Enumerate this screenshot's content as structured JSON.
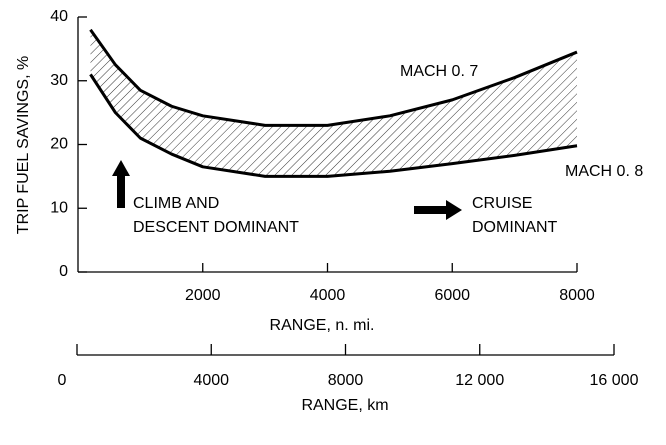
{
  "chart_data": {
    "type": "line",
    "ylabel": "TRIP FUEL SAVINGS, %",
    "xlabel": "RANGE, n. mi.",
    "x": [
      200,
      600,
      1000,
      1500,
      2000,
      3000,
      4000,
      5000,
      6000,
      7000,
      8000
    ],
    "series": [
      {
        "name": "MACH 0. 7",
        "color": "#000000",
        "values": [
          38,
          32.5,
          28.5,
          26,
          24.5,
          23,
          23,
          24.5,
          27,
          30.5,
          34.5
        ]
      },
      {
        "name": "MACH 0. 8",
        "color": "#000000",
        "values": [
          31,
          25,
          21,
          18.5,
          16.5,
          15,
          15,
          15.8,
          17,
          18.3,
          19.8
        ]
      }
    ],
    "xlim": [
      0,
      8000
    ],
    "xticks": [
      2000,
      4000,
      6000,
      8000
    ],
    "ylim": [
      0,
      40
    ],
    "yticks": [
      0,
      10,
      20,
      30,
      40
    ],
    "band_hatched": true,
    "annotations": [
      "CLIMB AND",
      "DESCENT DOMINANT",
      "CRUISE",
      "DOMINANT"
    ],
    "secondary_x_axis": {
      "label": "RANGE, km",
      "lim": [
        0,
        16000
      ],
      "ticks": [
        0,
        4000,
        8000,
        {
          "value": 12000,
          "label": "12 000"
        },
        {
          "value": 16000,
          "label": "16 000"
        }
      ]
    }
  }
}
